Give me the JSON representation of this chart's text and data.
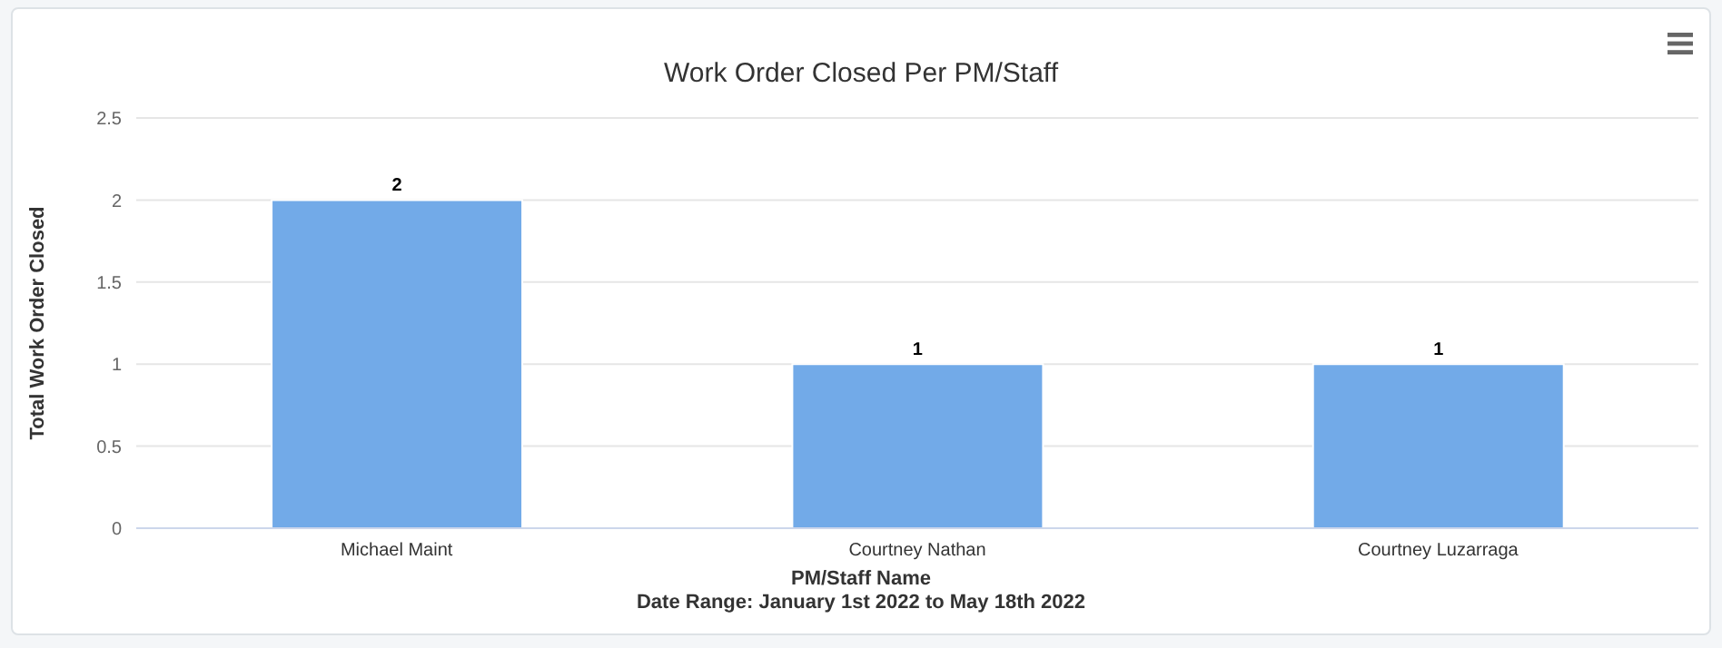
{
  "chart_data": {
    "type": "bar",
    "title": "Work Order Closed Per PM/Staff",
    "xlabel": "PM/Staff Name",
    "ylabel": "Total Work Order Closed",
    "annotations": [
      "Date Range: January 1st 2022 to May 18th 2022"
    ],
    "categories": [
      "Michael Maint",
      "Courtney Nathan",
      "Courtney Luzarraga"
    ],
    "series": [
      {
        "color": "#72aae8",
        "values": [
          2,
          1,
          1
        ]
      }
    ],
    "ylim": [
      0,
      2.5
    ],
    "yticks": [
      0,
      0.5,
      1,
      1.5,
      2,
      2.5
    ],
    "grid": "y",
    "data_labels": true,
    "legend": false
  }
}
